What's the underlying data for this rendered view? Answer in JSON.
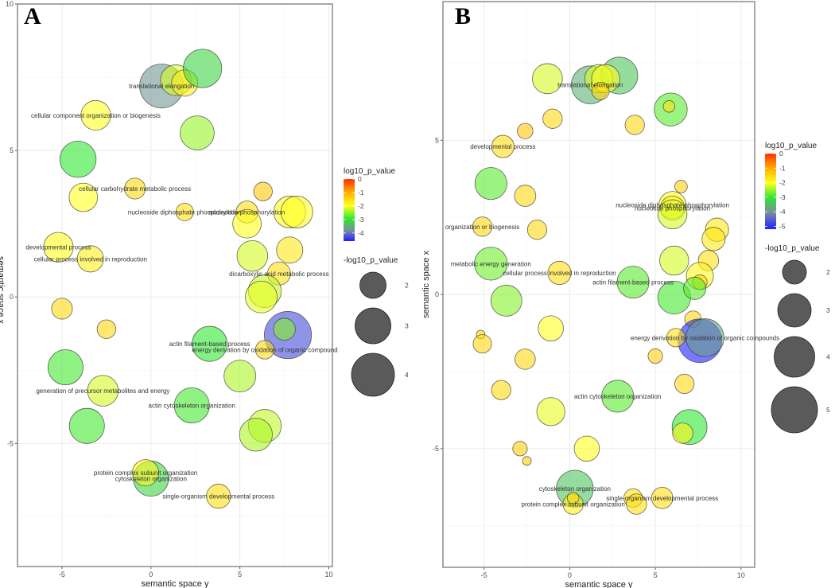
{
  "chart_data": [
    {
      "panel": "A",
      "type": "scatter",
      "title": "A",
      "xlabel": "semantic space y",
      "ylabel": "semantic space x",
      "xlim": [
        -7.5,
        10.2
      ],
      "ylim": [
        -9.2,
        10
      ],
      "xticks": [
        -5,
        0,
        5,
        10
      ],
      "yticks": [
        -5,
        0,
        5,
        10
      ],
      "grid": true,
      "color_legend": {
        "title": "log10_p_value",
        "ticks": [
          0,
          -1,
          -2,
          -3,
          -4
        ],
        "range": [
          -4.6,
          0
        ]
      },
      "size_legend": {
        "title": "-log10_p_value",
        "values": [
          2,
          3,
          4
        ]
      },
      "points": [
        {
          "x": 0.6,
          "y": 7.2,
          "log10p": -3.9,
          "size": 4.0,
          "label": "translational elongation"
        },
        {
          "x": 1.4,
          "y": 7.4,
          "log10p": -2.2,
          "size": 2.8
        },
        {
          "x": 1.9,
          "y": 7.3,
          "log10p": -1.8,
          "size": 2.4
        },
        {
          "x": 2.9,
          "y": 7.8,
          "log10p": -3.2,
          "size": 3.5
        },
        {
          "x": -3.1,
          "y": 6.2,
          "log10p": -2.0,
          "size": 2.7,
          "label": "cellular component organization or biogenesis"
        },
        {
          "x": 2.6,
          "y": 5.6,
          "log10p": -2.5,
          "size": 3.1
        },
        {
          "x": -4.1,
          "y": 4.7,
          "log10p": -3.0,
          "size": 3.3
        },
        {
          "x": -0.9,
          "y": 3.7,
          "log10p": -1.5,
          "size": 1.9,
          "label": "cellular carbohydrate metabolic process"
        },
        {
          "x": -3.8,
          "y": 3.4,
          "log10p": -2.0,
          "size": 2.6
        },
        {
          "x": 6.3,
          "y": 3.6,
          "log10p": -1.3,
          "size": 1.7
        },
        {
          "x": 1.9,
          "y": 2.9,
          "log10p": -1.6,
          "size": 1.6,
          "label": "nucleoside diphosphate phosphorylation"
        },
        {
          "x": 5.4,
          "y": 2.9,
          "log10p": -1.6,
          "size": 2.0,
          "label": "nucleotide phosphorylation"
        },
        {
          "x": 7.8,
          "y": 2.9,
          "log10p": -2.0,
          "size": 2.9
        },
        {
          "x": 8.2,
          "y": 2.9,
          "log10p": -2.0,
          "size": 2.9
        },
        {
          "x": 5.4,
          "y": 2.5,
          "log10p": -2.0,
          "size": 2.6
        },
        {
          "x": 5.7,
          "y": 1.4,
          "log10p": -2.2,
          "size": 2.8
        },
        {
          "x": 7.8,
          "y": 1.6,
          "log10p": -1.7,
          "size": 2.4
        },
        {
          "x": 7.2,
          "y": 0.8,
          "log10p": -1.6,
          "size": 2.1,
          "label": "dicarboxylic acid metabolic process"
        },
        {
          "x": 6.4,
          "y": 0.2,
          "log10p": -2.3,
          "size": 3.0
        },
        {
          "x": 6.2,
          "y": 0.0,
          "log10p": -2.1,
          "size": 2.9
        },
        {
          "x": -5.2,
          "y": 1.7,
          "log10p": -2.0,
          "size": 2.7,
          "label": "developmental process"
        },
        {
          "x": -3.4,
          "y": 1.3,
          "log10p": -1.8,
          "size": 2.4,
          "label": "cellular process involved in reproduction"
        },
        {
          "x": -5.0,
          "y": -0.4,
          "log10p": -1.5,
          "size": 1.9
        },
        {
          "x": -2.5,
          "y": -1.1,
          "log10p": -1.5,
          "size": 1.7
        },
        {
          "x": 7.7,
          "y": -1.3,
          "log10p": -4.6,
          "size": 4.3
        },
        {
          "x": 7.5,
          "y": -1.1,
          "log10p": -2.6,
          "size": 2.0
        },
        {
          "x": 3.3,
          "y": -1.6,
          "log10p": -3.0,
          "size": 3.2,
          "label": "actin filament-based process"
        },
        {
          "x": 6.4,
          "y": -1.8,
          "log10p": -1.5,
          "size": 1.7,
          "label": "energy derivation by oxidation of organic compound"
        },
        {
          "x": -4.8,
          "y": -2.4,
          "log10p": -2.9,
          "size": 3.2
        },
        {
          "x": 5.0,
          "y": -2.7,
          "log10p": -2.4,
          "size": 2.9
        },
        {
          "x": -2.7,
          "y": -3.2,
          "log10p": -2.2,
          "size": 2.8,
          "label": "generation of precursor metabolites and energy"
        },
        {
          "x": 2.3,
          "y": -3.7,
          "log10p": -2.9,
          "size": 3.2,
          "label": "actin cytoskeleton organization"
        },
        {
          "x": -3.6,
          "y": -4.4,
          "log10p": -2.9,
          "size": 3.2
        },
        {
          "x": 6.4,
          "y": -4.4,
          "log10p": -2.3,
          "size": 3.0
        },
        {
          "x": 5.9,
          "y": -4.7,
          "log10p": -2.4,
          "size": 3.0
        },
        {
          "x": 0.0,
          "y": -6.2,
          "log10p": -3.2,
          "size": 3.2,
          "label": "cytoskeleton organization"
        },
        {
          "x": -0.3,
          "y": -6.0,
          "log10p": -1.9,
          "size": 2.4,
          "label": "protein complex subunit organization"
        },
        {
          "x": 3.8,
          "y": -6.8,
          "log10p": -1.6,
          "size": 2.2,
          "label": "single-organism developmental process"
        }
      ]
    },
    {
      "panel": "B",
      "type": "scatter",
      "title": "B",
      "xlabel": "semantic space y",
      "ylabel": "semantic space x",
      "xlim": [
        -7.4,
        10.8
      ],
      "ylim": [
        -8.85,
        9.5
      ],
      "xticks": [
        -5,
        0,
        5,
        10
      ],
      "yticks": [
        -5,
        0,
        5
      ],
      "grid": true,
      "color_legend": {
        "title": "log10_p_value",
        "ticks": [
          0,
          -1,
          -2,
          -3,
          -4,
          -5
        ],
        "range": [
          -5.2,
          0
        ]
      },
      "size_legend": {
        "title": "-log10_p_value",
        "values": [
          2,
          3,
          4,
          5
        ]
      },
      "points": [
        {
          "x": 1.2,
          "y": 6.8,
          "log10p": -3.6,
          "size": 3.9,
          "label": "translational elongation"
        },
        {
          "x": 2.9,
          "y": 7.1,
          "log10p": -3.4,
          "size": 3.8
        },
        {
          "x": 1.7,
          "y": 7.0,
          "log10p": -2.2,
          "size": 2.9
        },
        {
          "x": 2.1,
          "y": 7.0,
          "log10p": -2.0,
          "size": 2.9
        },
        {
          "x": 1.8,
          "y": 6.6,
          "log10p": -1.5,
          "size": 1.8
        },
        {
          "x": -1.3,
          "y": 7.0,
          "log10p": -2.2,
          "size": 3.1
        },
        {
          "x": 5.9,
          "y": 6.0,
          "log10p": -2.8,
          "size": 3.4
        },
        {
          "x": 5.8,
          "y": 6.1,
          "log10p": -1.6,
          "size": 1.2
        },
        {
          "x": -1.0,
          "y": 5.7,
          "log10p": -1.5,
          "size": 2.0
        },
        {
          "x": 3.8,
          "y": 5.5,
          "log10p": -1.5,
          "size": 2.0
        },
        {
          "x": -2.6,
          "y": 5.3,
          "log10p": -1.3,
          "size": 1.6
        },
        {
          "x": -3.9,
          "y": 4.8,
          "log10p": -1.6,
          "size": 2.3,
          "label": "developmental process"
        },
        {
          "x": -4.6,
          "y": 3.6,
          "log10p": -2.8,
          "size": 3.3
        },
        {
          "x": -2.6,
          "y": 3.2,
          "log10p": -1.5,
          "size": 2.2
        },
        {
          "x": 6.5,
          "y": 3.5,
          "log10p": -1.4,
          "size": 1.3
        },
        {
          "x": 6.0,
          "y": 2.9,
          "log10p": -2.0,
          "size": 2.8,
          "label": "nucleoside diphosphate phosphorylation"
        },
        {
          "x": 6.0,
          "y": 2.8,
          "log10p": -1.9,
          "size": 2.5,
          "label": "nucleotide phosphorylation"
        },
        {
          "x": 6.0,
          "y": 2.6,
          "log10p": -2.2,
          "size": 3.0
        },
        {
          "x": -5.1,
          "y": 2.2,
          "log10p": -1.5,
          "size": 2.0,
          "label": "organization or biogenesis"
        },
        {
          "x": -1.9,
          "y": 2.1,
          "log10p": -1.5,
          "size": 2.0
        },
        {
          "x": 8.6,
          "y": 2.1,
          "log10p": -1.7,
          "size": 2.4
        },
        {
          "x": 8.4,
          "y": 1.8,
          "log10p": -1.7,
          "size": 2.4
        },
        {
          "x": 8.1,
          "y": 1.1,
          "log10p": -1.6,
          "size": 2.1
        },
        {
          "x": -4.6,
          "y": 1.0,
          "log10p": -2.7,
          "size": 3.4,
          "label": "metabolic energy generation"
        },
        {
          "x": 6.1,
          "y": 1.1,
          "log10p": -2.2,
          "size": 3.0
        },
        {
          "x": -0.6,
          "y": 0.7,
          "log10p": -1.6,
          "size": 2.4,
          "label": "cellular process involved in reproduction"
        },
        {
          "x": 3.7,
          "y": 0.4,
          "log10p": -2.8,
          "size": 3.3,
          "label": "actin filament-based process"
        },
        {
          "x": 7.6,
          "y": 0.6,
          "log10p": -1.9,
          "size": 2.8
        },
        {
          "x": 7.6,
          "y": 0.4,
          "log10p": -1.5,
          "size": 1.5
        },
        {
          "x": 6.1,
          "y": -0.1,
          "log10p": -2.9,
          "size": 3.4
        },
        {
          "x": 7.3,
          "y": 0.2,
          "log10p": -2.8,
          "size": 2.3
        },
        {
          "x": -3.7,
          "y": -0.2,
          "log10p": -2.6,
          "size": 3.2
        },
        {
          "x": 7.2,
          "y": -0.8,
          "log10p": -1.5,
          "size": 1.7
        },
        {
          "x": -1.1,
          "y": -1.1,
          "log10p": -2.0,
          "size": 2.6
        },
        {
          "x": 7.6,
          "y": -1.5,
          "log10p": -5.0,
          "size": 4.5
        },
        {
          "x": 7.9,
          "y": -1.4,
          "log10p": -3.8,
          "size": 3.9,
          "label": "energy derivation by oxidation of organic compounds"
        },
        {
          "x": 6.2,
          "y": -1.4,
          "log10p": -1.6,
          "size": 1.9
        },
        {
          "x": -5.2,
          "y": -1.3,
          "log10p": -1.5,
          "size": 0.9
        },
        {
          "x": -5.1,
          "y": -1.6,
          "log10p": -1.5,
          "size": 1.9
        },
        {
          "x": 5.0,
          "y": -2.0,
          "log10p": -1.4,
          "size": 1.5
        },
        {
          "x": -2.6,
          "y": -2.1,
          "log10p": -1.5,
          "size": 2.1
        },
        {
          "x": 6.7,
          "y": -2.9,
          "log10p": -1.5,
          "size": 2.0
        },
        {
          "x": -4.0,
          "y": -3.1,
          "log10p": -1.5,
          "size": 2.0
        },
        {
          "x": 2.8,
          "y": -3.3,
          "log10p": -2.8,
          "size": 3.3,
          "label": "actin cytoskeleton organization"
        },
        {
          "x": -1.1,
          "y": -3.8,
          "log10p": -2.1,
          "size": 2.9
        },
        {
          "x": 7.0,
          "y": -4.3,
          "log10p": -3.0,
          "size": 3.6
        },
        {
          "x": 6.6,
          "y": -4.5,
          "log10p": -1.9,
          "size": 2.1
        },
        {
          "x": -2.9,
          "y": -5.0,
          "log10p": -1.4,
          "size": 1.5
        },
        {
          "x": 1.0,
          "y": -5.0,
          "log10p": -2.0,
          "size": 2.6
        },
        {
          "x": -2.5,
          "y": -5.4,
          "log10p": -1.4,
          "size": 0.9
        },
        {
          "x": 0.3,
          "y": -6.3,
          "log10p": -3.4,
          "size": 3.8,
          "label": "cytoskeleton organization"
        },
        {
          "x": 0.2,
          "y": -6.8,
          "log10p": -1.8,
          "size": 2.1,
          "label": "protein complex subunit organization"
        },
        {
          "x": 0.2,
          "y": -6.6,
          "log10p": -1.5,
          "size": 1.2
        },
        {
          "x": 3.7,
          "y": -6.6,
          "log10p": -1.6,
          "size": 1.9
        },
        {
          "x": 3.9,
          "y": -6.8,
          "log10p": -1.6,
          "size": 2.1
        },
        {
          "x": 5.4,
          "y": -6.6,
          "log10p": -1.6,
          "size": 2.2,
          "label": "single-organism developmental process"
        }
      ]
    }
  ]
}
